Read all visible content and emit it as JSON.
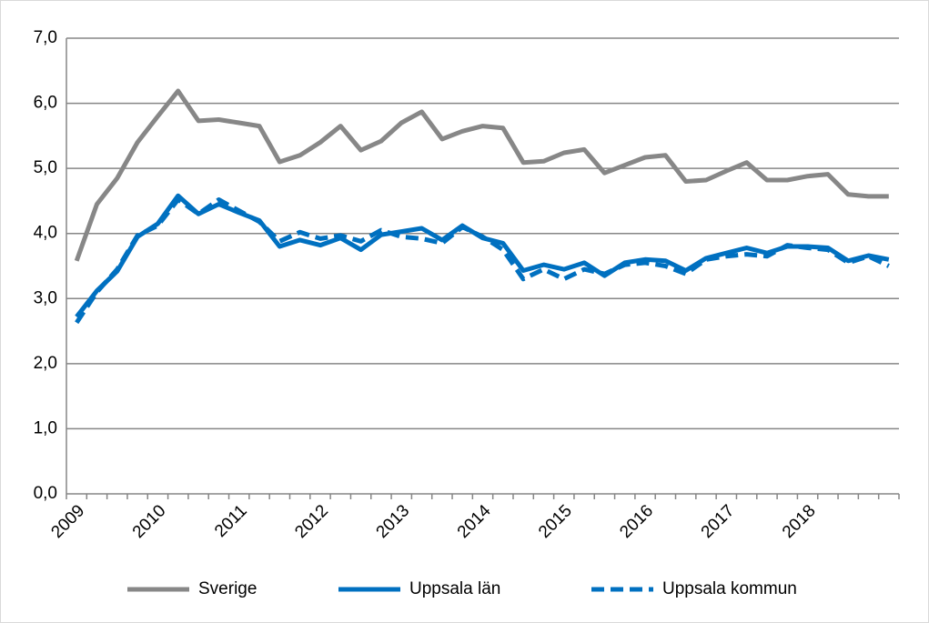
{
  "chart_data": {
    "type": "line",
    "categories": [
      "2009",
      null,
      null,
      null,
      "2010",
      null,
      null,
      null,
      "2011",
      null,
      null,
      null,
      "2012",
      null,
      null,
      null,
      "2013",
      null,
      null,
      null,
      "2014",
      null,
      null,
      null,
      "2015",
      null,
      null,
      null,
      "2016",
      null,
      null,
      null,
      "2017",
      null,
      null,
      null,
      "2018",
      null,
      null,
      null,
      null
    ],
    "series": [
      {
        "name": "Sverige",
        "color": "#878787",
        "dash": false,
        "values": [
          3.58,
          4.45,
          4.85,
          5.4,
          5.8,
          6.19,
          5.73,
          5.75,
          5.7,
          5.65,
          5.1,
          5.2,
          5.4,
          5.65,
          5.28,
          5.42,
          5.7,
          5.87,
          5.45,
          5.57,
          5.65,
          5.62,
          5.09,
          5.11,
          5.24,
          5.29,
          4.93,
          5.05,
          5.17,
          5.2,
          4.8,
          4.82,
          4.96,
          5.09,
          4.82,
          4.82,
          4.88,
          4.91,
          4.6,
          4.57,
          4.57
        ]
      },
      {
        "name": "Uppsala län",
        "color": "#0070c0",
        "dash": false,
        "values": [
          2.72,
          3.12,
          3.42,
          3.95,
          4.15,
          4.58,
          4.3,
          4.45,
          4.32,
          4.2,
          3.8,
          3.9,
          3.82,
          3.93,
          3.75,
          3.98,
          4.03,
          4.08,
          3.9,
          4.12,
          3.93,
          3.85,
          3.43,
          3.52,
          3.45,
          3.55,
          3.35,
          3.55,
          3.6,
          3.58,
          3.43,
          3.62,
          3.7,
          3.78,
          3.7,
          3.8,
          3.8,
          3.78,
          3.58,
          3.66,
          3.6
        ]
      },
      {
        "name": "Uppsala kommun",
        "color": "#0070c0",
        "dash": true,
        "values": [
          2.63,
          3.1,
          3.45,
          3.97,
          4.12,
          4.52,
          4.3,
          4.52,
          4.35,
          4.18,
          3.88,
          4.02,
          3.92,
          3.97,
          3.88,
          4.05,
          3.95,
          3.92,
          3.85,
          4.1,
          3.95,
          3.75,
          3.3,
          3.45,
          3.3,
          3.45,
          3.38,
          3.52,
          3.55,
          3.5,
          3.38,
          3.6,
          3.65,
          3.68,
          3.65,
          3.82,
          3.78,
          3.75,
          3.55,
          3.65,
          3.5
        ]
      }
    ],
    "ylim": [
      0,
      7
    ],
    "yticks": [
      {
        "value": 0,
        "label": "0,0"
      },
      {
        "value": 1,
        "label": "1,0"
      },
      {
        "value": 2,
        "label": "2,0"
      },
      {
        "value": 3,
        "label": "3,0"
      },
      {
        "value": 4,
        "label": "4,0"
      },
      {
        "value": 5,
        "label": "5,0"
      },
      {
        "value": 6,
        "label": "6,0"
      },
      {
        "value": 7,
        "label": "7,0"
      }
    ],
    "grid": true,
    "legend": "bottom"
  }
}
